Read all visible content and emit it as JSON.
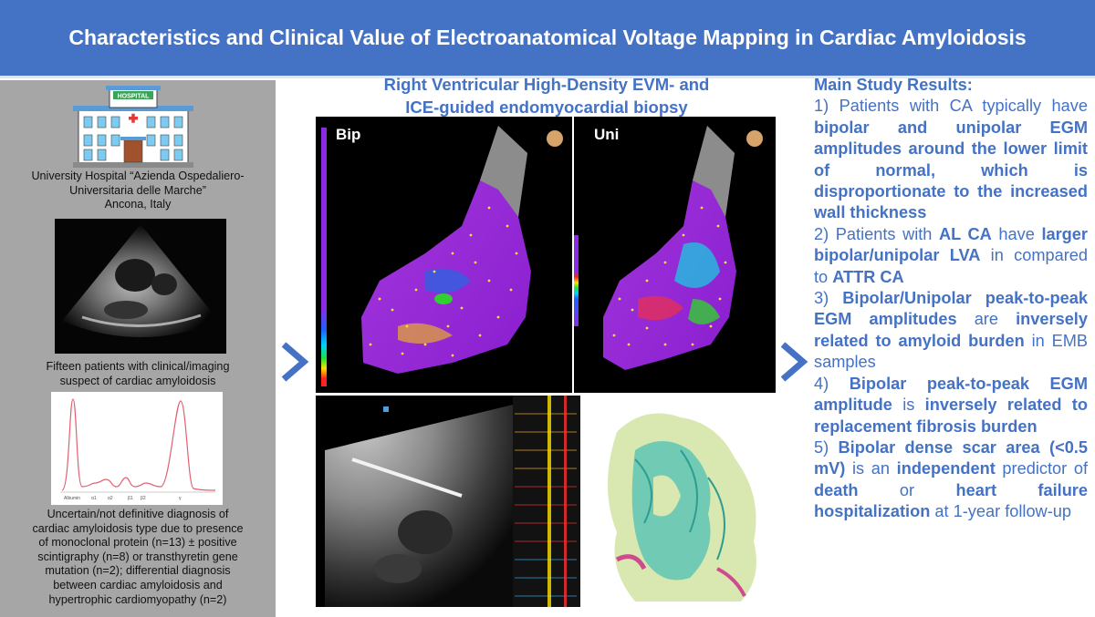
{
  "banner": {
    "title": "Characteristics and Clinical Value of Electroanatomical Voltage Mapping in Cardiac Amyloidosis"
  },
  "left": {
    "hospital_sign": "HOSPITAL",
    "hospital_line1": "University Hospital “Azienda Ospedaliero-",
    "hospital_line2": "Universitaria delle Marche”",
    "hospital_line3": "Ancona, Italy",
    "patients_line1": "Fifteen patients with clinical/imaging",
    "patients_line2": "suspect of cardiac amyloidosis",
    "electro_labels": [
      "Albumin",
      "α1",
      "α2",
      "β1",
      "β2",
      "γ"
    ],
    "diagnosis_lines": [
      "Uncertain/not definitive diagnosis of",
      "cardiac amyloidosis type due to presence",
      "of monoclonal protein (n=13) ± positive",
      "scintigraphy (n=8) or transthyretin gene",
      "mutation (n=2); differential diagnosis",
      "between cardiac amyloidosis and",
      "hypertrophic cardiomyopathy (n=2)"
    ]
  },
  "middle": {
    "title_line1": "Right Ventricular High-Density EVM- and",
    "title_line2": "ICE-guided endomyocardial biopsy",
    "bip_label": "Bip",
    "uni_label": "Uni"
  },
  "results": {
    "title": "Main Study Results:",
    "items": [
      [
        {
          "t": "1) Patients with CA typically have ",
          "b": false
        },
        {
          "t": "bipolar and unipolar EGM amplitudes around the lower limit of normal, which is disproportionate to the increased wall thickness",
          "b": true
        }
      ],
      [
        {
          "t": "2) Patients with ",
          "b": false
        },
        {
          "t": "AL CA",
          "b": true
        },
        {
          "t": " have ",
          "b": false
        },
        {
          "t": "larger bipolar/unipolar LVA",
          "b": true
        },
        {
          "t": " in compared to ",
          "b": false
        },
        {
          "t": "ATTR CA",
          "b": true
        }
      ],
      [
        {
          "t": "3) ",
          "b": false
        },
        {
          "t": "Bipolar/Unipolar peak-to-peak EGM amplitudes",
          "b": true
        },
        {
          "t": " are ",
          "b": false
        },
        {
          "t": "inversely related to amyloid burden",
          "b": true
        },
        {
          "t": " in EMB samples",
          "b": false
        }
      ],
      [
        {
          "t": "4) ",
          "b": false
        },
        {
          "t": "Bipolar peak-to-peak EGM amplitude",
          "b": true
        },
        {
          "t": " is ",
          "b": false
        },
        {
          "t": "inversely related to replacement fibrosis burden",
          "b": true
        }
      ],
      [
        {
          "t": "5) ",
          "b": false
        },
        {
          "t": "Bipolar dense scar area (<0.5 mV)",
          "b": true
        },
        {
          "t": " is an ",
          "b": false
        },
        {
          "t": "independent",
          "b": true
        },
        {
          "t": " predictor of ",
          "b": false
        },
        {
          "t": "death",
          "b": true
        },
        {
          "t": " or ",
          "b": false
        },
        {
          "t": "heart failure hospitalization",
          "b": true
        },
        {
          "t": " at 1-year follow-up",
          "b": false
        }
      ]
    ]
  },
  "colors": {
    "accent": "#4472c4",
    "left_panel": "#a6a6a6"
  }
}
